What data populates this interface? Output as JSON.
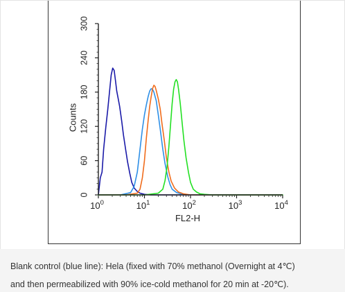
{
  "chart_data": {
    "type": "line",
    "title": "",
    "xlabel": "FL2-H",
    "ylabel": "Counts",
    "x_scale": "log",
    "xlim": [
      1,
      10000
    ],
    "ylim": [
      0,
      300
    ],
    "y_ticks": [
      0,
      60,
      120,
      180,
      240,
      300
    ],
    "y_tick_labels": [
      "0",
      "60",
      "120",
      "180",
      "240",
      "300"
    ],
    "x_ticks": [
      1,
      10,
      100,
      1000,
      10000
    ],
    "x_tick_bases": [
      "10",
      "10",
      "10",
      "10",
      "10"
    ],
    "x_tick_exponents": [
      "0",
      "1",
      "2",
      "3",
      "4"
    ],
    "grid": false,
    "legend": "none",
    "series": [
      {
        "color": "#1a1aa8",
        "x": [
          1.0,
          1.1,
          1.2,
          1.3,
          1.45,
          1.6,
          1.75,
          1.9,
          2.05,
          2.2,
          2.35,
          2.5,
          2.7,
          2.9,
          3.2,
          3.5,
          3.9,
          4.3,
          4.8,
          5.3,
          6.0,
          7.0,
          8.0,
          10.0,
          14.0,
          20.0,
          40.0,
          100.0,
          1000.0,
          10000.0
        ],
        "y": [
          0,
          30,
          40,
          80,
          118,
          150,
          182,
          210,
          222,
          218,
          200,
          182,
          168,
          155,
          130,
          105,
          80,
          58,
          38,
          22,
          12,
          6,
          3,
          1,
          0,
          0,
          0,
          0,
          0,
          0
        ]
      },
      {
        "color": "#2e8fe6",
        "x": [
          1.0,
          3.0,
          5.0,
          6.0,
          7.0,
          8.0,
          9.0,
          10.0,
          11.0,
          12.0,
          13.0,
          14.0,
          15.0,
          16.0,
          18.0,
          20.0,
          22.0,
          25.0,
          28.0,
          32.0,
          36.0,
          40.0,
          50.0,
          70.0,
          100.0,
          1000.0,
          10000.0
        ],
        "y": [
          0,
          0,
          4,
          15,
          40,
          80,
          115,
          140,
          158,
          172,
          182,
          186,
          185,
          180,
          165,
          140,
          115,
          80,
          55,
          32,
          18,
          10,
          4,
          1,
          0,
          0,
          0
        ]
      },
      {
        "color": "#f06c1c",
        "x": [
          1.0,
          4.0,
          7.0,
          8.0,
          9.0,
          10.0,
          11.0,
          12.0,
          13.0,
          14.0,
          15.0,
          16.0,
          17.0,
          18.0,
          20.0,
          22.0,
          24.0,
          27.0,
          30.0,
          34.0,
          38.0,
          45.0,
          55.0,
          70.0,
          100.0,
          1000.0,
          10000.0
        ],
        "y": [
          0,
          0,
          3,
          10,
          30,
          60,
          100,
          130,
          155,
          172,
          186,
          192,
          190,
          183,
          168,
          150,
          125,
          95,
          65,
          40,
          24,
          12,
          5,
          2,
          0,
          0,
          0
        ]
      },
      {
        "color": "#22e022",
        "x": [
          1.0,
          10.0,
          20.0,
          25.0,
          28.0,
          31.0,
          34.0,
          37.0,
          40.0,
          43.0,
          46.0,
          49.0,
          52.0,
          55.0,
          60.0,
          66.0,
          72.0,
          80.0,
          90.0,
          100.0,
          115.0,
          135.0,
          160.0,
          200.0,
          300.0,
          1000.0,
          10000.0
        ],
        "y": [
          0,
          0,
          3,
          10,
          25,
          50,
          85,
          125,
          160,
          185,
          198,
          202,
          198,
          185,
          160,
          125,
          95,
          65,
          40,
          22,
          10,
          5,
          2,
          1,
          0,
          0,
          0
        ]
      }
    ]
  },
  "caption": {
    "line1": "Blank control (blue line): Hela (fixed with 70% methanol (Overnight at 4℃)",
    "line2": "and then permeabilized with 90% ice-cold methanol for 20 min at -20℃)."
  }
}
